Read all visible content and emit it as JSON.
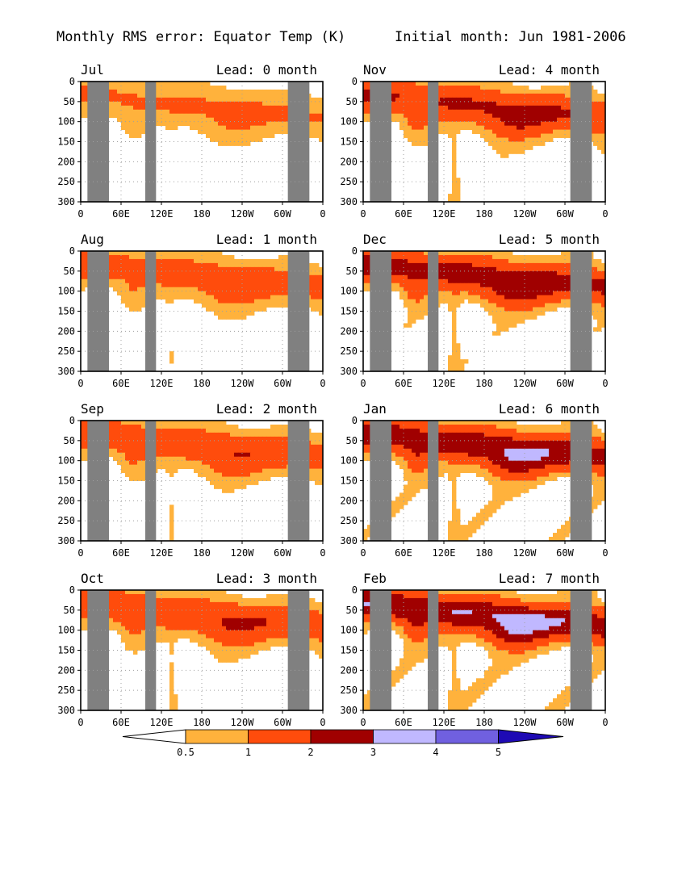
{
  "header": {
    "title": "Monthly RMS error: Equator Temp (K)",
    "subtitle": "Initial month: Jun 1981-2006"
  },
  "colors": {
    "levels": [
      "#ffffff",
      "#ffb23c",
      "#ff4c0c",
      "#a00000",
      "#c0b8ff",
      "#7060e0",
      "#1e0ab4"
    ],
    "land": "#808080",
    "grid": "#a0a0a0"
  },
  "chart_data": {
    "type": "heatmap",
    "x_ticks": [
      "0",
      "60E",
      "120E",
      "180",
      "120W",
      "60W",
      "0"
    ],
    "y_ticks": [
      "0",
      "50",
      "100",
      "150",
      "200",
      "250",
      "300"
    ],
    "xlim_deg_east": [
      0,
      360
    ],
    "ylim": [
      300,
      0
    ],
    "grid": true,
    "land_bands_deg_east": [
      [
        10,
        42
      ],
      [
        96,
        112
      ],
      [
        308,
        340
      ]
    ],
    "colorbar": {
      "labels": [
        "0.5",
        "1",
        "2",
        "3",
        "4",
        "5"
      ],
      "bounds": [
        0.5,
        1,
        2,
        3,
        4,
        5
      ]
    },
    "panels": [
      {
        "month": "Jul",
        "lead": "Lead: 0 month",
        "amp": 0.55
      },
      {
        "month": "Nov",
        "lead": "Lead: 4 month",
        "amp": 1.25
      },
      {
        "month": "Aug",
        "lead": "Lead: 1 month",
        "amp": 0.8
      },
      {
        "month": "Dec",
        "lead": "Lead: 5 month",
        "amp": 1.5
      },
      {
        "month": "Sep",
        "lead": "Lead: 2 month",
        "amp": 0.95
      },
      {
        "month": "Jan",
        "lead": "Lead: 6 month",
        "amp": 1.7
      },
      {
        "month": "Oct",
        "lead": "Lead: 3 month",
        "amp": 1.05
      },
      {
        "month": "Feb",
        "lead": "Lead: 7 month",
        "amp": 1.85
      }
    ]
  }
}
